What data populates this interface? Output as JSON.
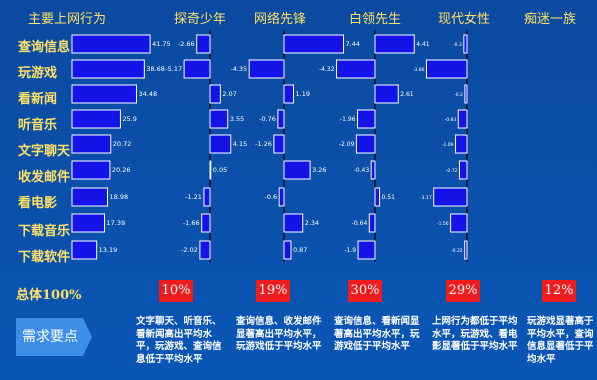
{
  "header": {
    "main": "主要上网行为",
    "groups": [
      "探奇少年",
      "网络先锋",
      "白领先生",
      "现代女性",
      "痴迷一族"
    ]
  },
  "rows": [
    "查询信息",
    "玩游戏",
    "看新闻",
    "听音乐",
    "文字聊天",
    "收发邮件",
    "看电影",
    "下载音乐",
    "下载软件"
  ],
  "total_label": "总体100%",
  "percentages": [
    "10%",
    "19%",
    "30%",
    "29%",
    "12%"
  ],
  "notes": [
    "文字聊天、听音乐、看新闻高出平均水平，玩游戏、查询信息低于平均水平",
    "查询信息、收发邮件显著高出平均水平，玩游戏低于平均水平",
    "查询信息、看新闻显著高出平均水平，玩游戏低于平均水平",
    "上网行为都低于平均水平，玩游戏、看电影显著低于平均水平",
    "玩游戏显著高于平均水平，查询信息显著低于平均水平"
  ],
  "need_button": "需求要点",
  "colors": {
    "bar_fill": "#1414e8",
    "bar_stroke": "#ffffff",
    "label": "#ffe066",
    "badge": "#ee1c1c"
  },
  "chart_data": [
    {
      "type": "bar",
      "name": "主要上网行为",
      "categories": [
        "查询信息",
        "玩游戏",
        "看新闻",
        "听音乐",
        "文字聊天",
        "收发邮件",
        "看电影",
        "下载音乐",
        "下载软件"
      ],
      "values": [
        41.75,
        38.68,
        34.48,
        25.9,
        20.72,
        20.26,
        18.98,
        17.39,
        13.19
      ],
      "labels": [
        "41.75",
        "38.68",
        "34.48",
        "25.9",
        "20.72",
        "20.26",
        "18.98",
        "17.39",
        "13.19"
      ]
    },
    {
      "type": "bar",
      "name": "探奇少年",
      "categories": [
        "查询信息",
        "玩游戏",
        "看新闻",
        "听音乐",
        "文字聊天",
        "收发邮件",
        "看电影",
        "下载音乐",
        "下载软件"
      ],
      "values": [
        -2.66,
        -5.17,
        2.07,
        3.55,
        4.15,
        0.05,
        -1.21,
        -1.66,
        -2.02
      ],
      "labels": [
        "-2.66",
        "-5.17",
        "2.07",
        "3.55",
        "4.15",
        "0.05",
        "-1.21",
        "-1.66",
        "-2.02"
      ]
    },
    {
      "type": "bar",
      "name": "网络先锋",
      "categories": [
        "查询信息",
        "玩游戏",
        "看新闻",
        "听音乐",
        "文字聊天",
        "收发邮件",
        "看电影",
        "下载音乐",
        "下载软件"
      ],
      "values": [
        7.44,
        -4.35,
        1.19,
        -0.76,
        -1.26,
        3.26,
        -0.6,
        2.34,
        0.87
      ],
      "labels": [
        "7.44",
        "-4.35",
        "1.19",
        "-0.76",
        "-1.26",
        "3.26",
        "-0.6",
        "2.34",
        "0.87"
      ]
    },
    {
      "type": "bar",
      "name": "白领先生",
      "categories": [
        "查询信息",
        "玩游戏",
        "看新闻",
        "听音乐",
        "文字聊天",
        "收发邮件",
        "看电影",
        "下载音乐",
        "下载软件"
      ],
      "values": [
        4.41,
        -4.32,
        2.61,
        -1.96,
        -2.09,
        -0.43,
        0.51,
        -0.64,
        -1.9
      ],
      "labels": [
        "4.41",
        "-4.32",
        "2.61",
        "-1.96",
        "-2.09",
        "-0.43",
        "0.51",
        "-0.64",
        "-1.9"
      ]
    },
    {
      "type": "bar",
      "name": "现代女性",
      "categories": [
        "查询信息",
        "玩游戏",
        "看新闻",
        "听音乐",
        "文字聊天",
        "收发邮件",
        "看电影",
        "下载音乐",
        "下载软件"
      ],
      "values": [
        -0.3,
        -3.86,
        -0.2,
        -0.83,
        -1.09,
        -0.72,
        -3.17,
        -1.56,
        -0.22
      ],
      "labels": [
        "-0.3",
        "-3.86",
        "-0.2",
        "-0.83",
        "-1.09",
        "-0.72",
        "-3.17",
        "-1.56",
        "-0.22"
      ]
    }
  ]
}
